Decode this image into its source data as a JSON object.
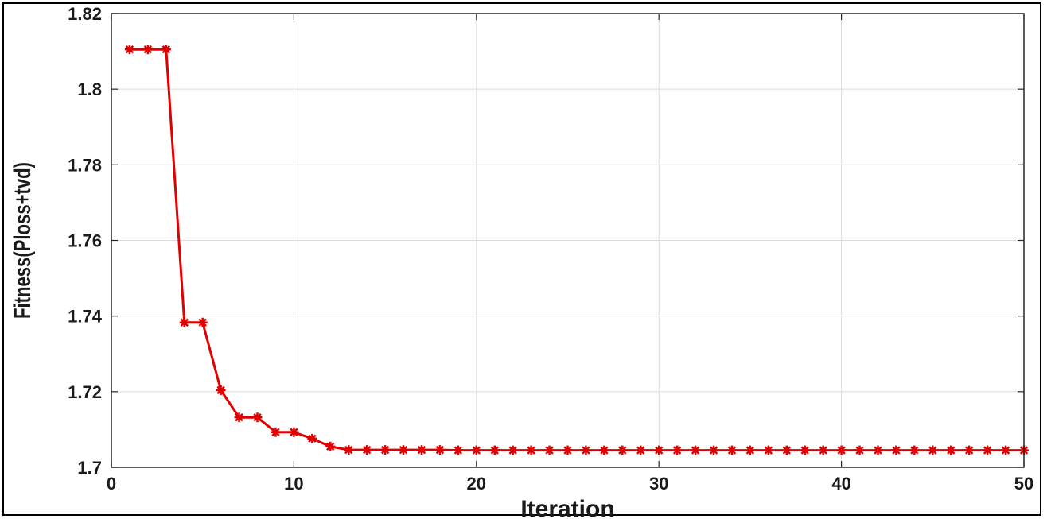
{
  "chart_data": {
    "type": "line",
    "title": "",
    "xlabel": "Iteration",
    "ylabel": "Fitness(Ploss+tvd)",
    "xlim": [
      0,
      50
    ],
    "ylim": [
      1.7,
      1.82
    ],
    "xticks": [
      0,
      10,
      20,
      30,
      40,
      50
    ],
    "yticks": [
      1.7,
      1.72,
      1.74,
      1.76,
      1.78,
      1.8,
      1.82
    ],
    "xtick_labels": [
      "0",
      "10",
      "20",
      "30",
      "40",
      "50"
    ],
    "ytick_labels": [
      "1.7",
      "1.72",
      "1.74",
      "1.76",
      "1.78",
      "1.8",
      "1.82"
    ],
    "grid": true,
    "series": [
      {
        "color": "#e00000",
        "marker": "asterisk",
        "x": [
          1,
          2,
          3,
          4,
          5,
          6,
          7,
          8,
          9,
          10,
          11,
          12,
          13,
          14,
          15,
          16,
          17,
          18,
          19,
          20,
          21,
          22,
          23,
          24,
          25,
          26,
          27,
          28,
          29,
          30,
          31,
          32,
          33,
          34,
          35,
          36,
          37,
          38,
          39,
          40,
          41,
          42,
          43,
          44,
          45,
          46,
          47,
          48,
          49,
          50
        ],
        "y": [
          1.8105,
          1.8105,
          1.8105,
          1.7383,
          1.7383,
          1.7204,
          1.7132,
          1.7132,
          1.7093,
          1.7093,
          1.7076,
          1.7055,
          1.7046,
          1.7046,
          1.7046,
          1.7046,
          1.7046,
          1.7046,
          1.7045,
          1.7045,
          1.7045,
          1.7045,
          1.7045,
          1.7045,
          1.7045,
          1.7045,
          1.7045,
          1.7045,
          1.7045,
          1.7045,
          1.7045,
          1.7045,
          1.7045,
          1.7045,
          1.7045,
          1.7045,
          1.7045,
          1.7045,
          1.7045,
          1.7045,
          1.7045,
          1.7045,
          1.7045,
          1.7045,
          1.7045,
          1.7045,
          1.7045,
          1.7045,
          1.7045,
          1.7045
        ]
      }
    ]
  }
}
